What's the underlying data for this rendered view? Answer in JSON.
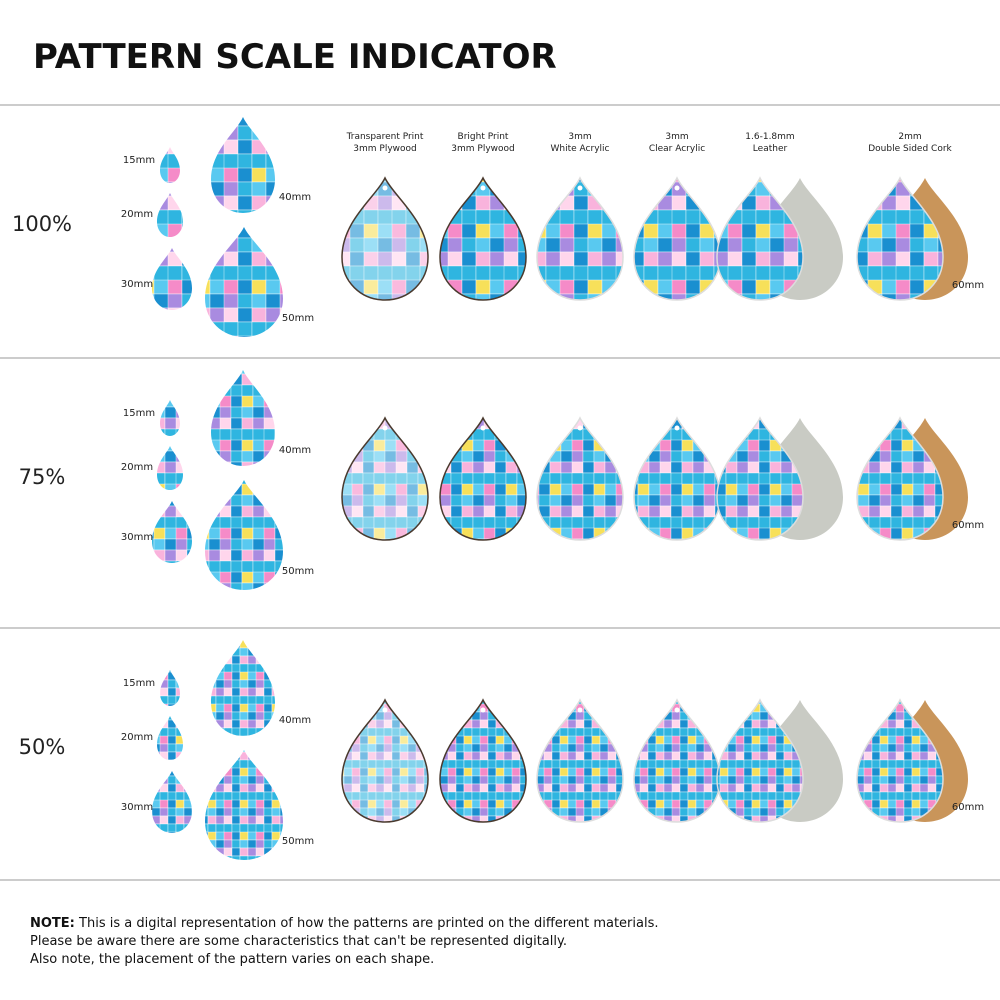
{
  "title": "PATTERN SCALE INDICATOR",
  "materials": [
    {
      "lines": [
        "Transparent Print",
        "3mm Plywood"
      ]
    },
    {
      "lines": [
        "Bright Print",
        "3mm Plywood"
      ]
    },
    {
      "lines": [
        "3mm",
        "White Acrylic"
      ]
    },
    {
      "lines": [
        "3mm",
        "Clear Acrylic"
      ]
    },
    {
      "lines": [
        "1.6-1.8mm",
        "Leather"
      ]
    },
    {
      "lines": [
        "2mm",
        "Double Sided Cork"
      ]
    }
  ],
  "sections": [
    {
      "scale": "100%",
      "sizes": [
        "15mm",
        "20mm",
        "30mm",
        "40mm",
        "50mm"
      ],
      "large_size": "60mm"
    },
    {
      "scale": "75%",
      "sizes": [
        "15mm",
        "20mm",
        "30mm",
        "40mm",
        "50mm"
      ],
      "large_size": "60mm"
    },
    {
      "scale": "50%",
      "sizes": [
        "15mm",
        "20mm",
        "30mm",
        "40mm",
        "50mm"
      ],
      "large_size": "60mm"
    }
  ],
  "note": {
    "label": "NOTE:",
    "lines": [
      " This is a digital representation of how the patterns are printed on the different materials.",
      "Please be aware there are some characteristics that can't be represented digitally.",
      "Also note, the placement of the pattern varies on each shape."
    ]
  }
}
